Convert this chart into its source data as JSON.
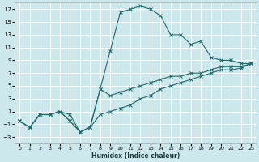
{
  "xlabel": "Humidex (Indice chaleur)",
  "bg_color": "#cde8ec",
  "grid_color": "#ffffff",
  "line_color": "#1e6b6b",
  "xlim": [
    -0.5,
    23.5
  ],
  "ylim": [
    -4,
    18
  ],
  "xticks": [
    0,
    1,
    2,
    3,
    4,
    5,
    6,
    7,
    8,
    9,
    10,
    11,
    12,
    13,
    14,
    15,
    16,
    17,
    18,
    19,
    20,
    21,
    22,
    23
  ],
  "yticks": [
    -3,
    -1,
    1,
    3,
    5,
    7,
    9,
    11,
    13,
    15,
    17
  ],
  "curve1_x": [
    0,
    1,
    2,
    3,
    4,
    5,
    6,
    7,
    8,
    9,
    10,
    11,
    12,
    13,
    14,
    15,
    16,
    17,
    18,
    19,
    20,
    21,
    22,
    23
  ],
  "curve1_y": [
    -0.5,
    -1.5,
    0.5,
    0.5,
    1.0,
    0.5,
    -2.2,
    -1.5,
    4.5,
    10.5,
    16.5,
    17.0,
    17.5,
    17.0,
    16.0,
    13.0,
    13.0,
    11.5,
    12.0,
    9.5,
    9.0,
    9.0,
    8.5,
    8.5
  ],
  "curve2_x": [
    0,
    1,
    2,
    3,
    4,
    5,
    6,
    7,
    8,
    9,
    10,
    11,
    12,
    13,
    14,
    15,
    16,
    17,
    18,
    19,
    20,
    21,
    22,
    23
  ],
  "curve2_y": [
    -0.5,
    -1.5,
    0.5,
    0.5,
    1.0,
    -0.5,
    -2.2,
    -1.5,
    0.5,
    1.0,
    1.5,
    2.0,
    3.0,
    3.5,
    4.5,
    5.0,
    5.5,
    6.0,
    6.5,
    7.0,
    7.5,
    7.5,
    7.8,
    8.5
  ],
  "curve3_x": [
    0,
    1,
    2,
    3,
    4,
    5,
    6,
    7,
    8,
    9,
    10,
    11,
    12,
    13,
    14,
    15,
    16,
    17,
    18,
    19,
    20,
    21,
    22,
    23
  ],
  "curve3_y": [
    -0.5,
    -1.5,
    0.5,
    0.5,
    1.0,
    -0.5,
    -2.2,
    -1.5,
    4.5,
    3.5,
    4.0,
    4.5,
    5.0,
    5.5,
    6.0,
    6.5,
    6.5,
    7.0,
    7.0,
    7.5,
    8.0,
    8.0,
    8.0,
    8.5
  ]
}
